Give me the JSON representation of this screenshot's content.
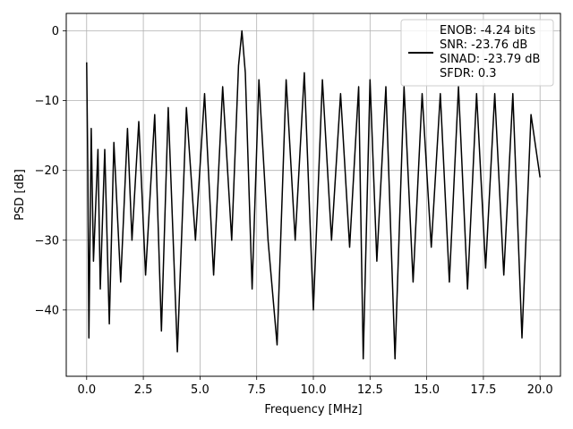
{
  "chart_data": {
    "type": "line",
    "xlabel": "Frequency [MHz]",
    "ylabel": "PSD [dB]",
    "xlim": [
      -0.9,
      20.9
    ],
    "ylim": [
      -49.5,
      2.5
    ],
    "xticks": [
      0.0,
      2.5,
      5.0,
      7.5,
      10.0,
      12.5,
      15.0,
      17.5,
      20.0
    ],
    "xtick_labels": [
      "0.0",
      "2.5",
      "5.0",
      "7.5",
      "10.0",
      "12.5",
      "15.0",
      "17.5",
      "20.0"
    ],
    "yticks": [
      0,
      -10,
      -20,
      -30,
      -40
    ],
    "ytick_labels": [
      "0",
      "−10",
      "−20",
      "−30",
      "−40"
    ],
    "grid": true,
    "legend_position": "top-right",
    "series": [
      {
        "name": "",
        "color": "#000000",
        "x": [
          0.0,
          0.05,
          0.1,
          0.2,
          0.3,
          0.4,
          0.5,
          0.6,
          0.8,
          1.0,
          1.2,
          1.5,
          1.8,
          2.0,
          2.3,
          2.6,
          3.0,
          3.3,
          3.6,
          4.0,
          4.4,
          4.8,
          5.2,
          5.6,
          6.0,
          6.4,
          6.7,
          6.85,
          7.0,
          7.3,
          7.6,
          8.0,
          8.4,
          8.8,
          9.2,
          9.6,
          10.0,
          10.4,
          10.8,
          11.2,
          11.6,
          12.0,
          12.2,
          12.5,
          12.8,
          13.2,
          13.6,
          14.0,
          14.4,
          14.8,
          15.2,
          15.6,
          16.0,
          16.4,
          16.8,
          17.2,
          17.6,
          18.0,
          18.4,
          18.8,
          19.2,
          19.6,
          20.0
        ],
        "y": [
          -4.5,
          -20,
          -44,
          -14,
          -33,
          -25,
          -17,
          -37,
          -17,
          -42,
          -16,
          -36,
          -14,
          -30,
          -13,
          -35,
          -12,
          -43,
          -11,
          -46,
          -11,
          -30,
          -9,
          -35,
          -8,
          -30,
          -5,
          0,
          -6,
          -37,
          -7,
          -30,
          -45,
          -7,
          -30,
          -6,
          -40,
          -7,
          -30,
          -9,
          -31,
          -8,
          -47,
          -7,
          -33,
          -8,
          -47,
          -8,
          -36,
          -9,
          -31,
          -9,
          -36,
          -8,
          -37,
          -9,
          -34,
          -9,
          -35,
          -9,
          -44,
          -12,
          -21
        ]
      }
    ],
    "legend_entries": [
      "ENOB: -4.24 bits",
      "SNR: -23.76 dB",
      "SINAD: -23.79 dB",
      "SFDR: 0.3"
    ]
  }
}
